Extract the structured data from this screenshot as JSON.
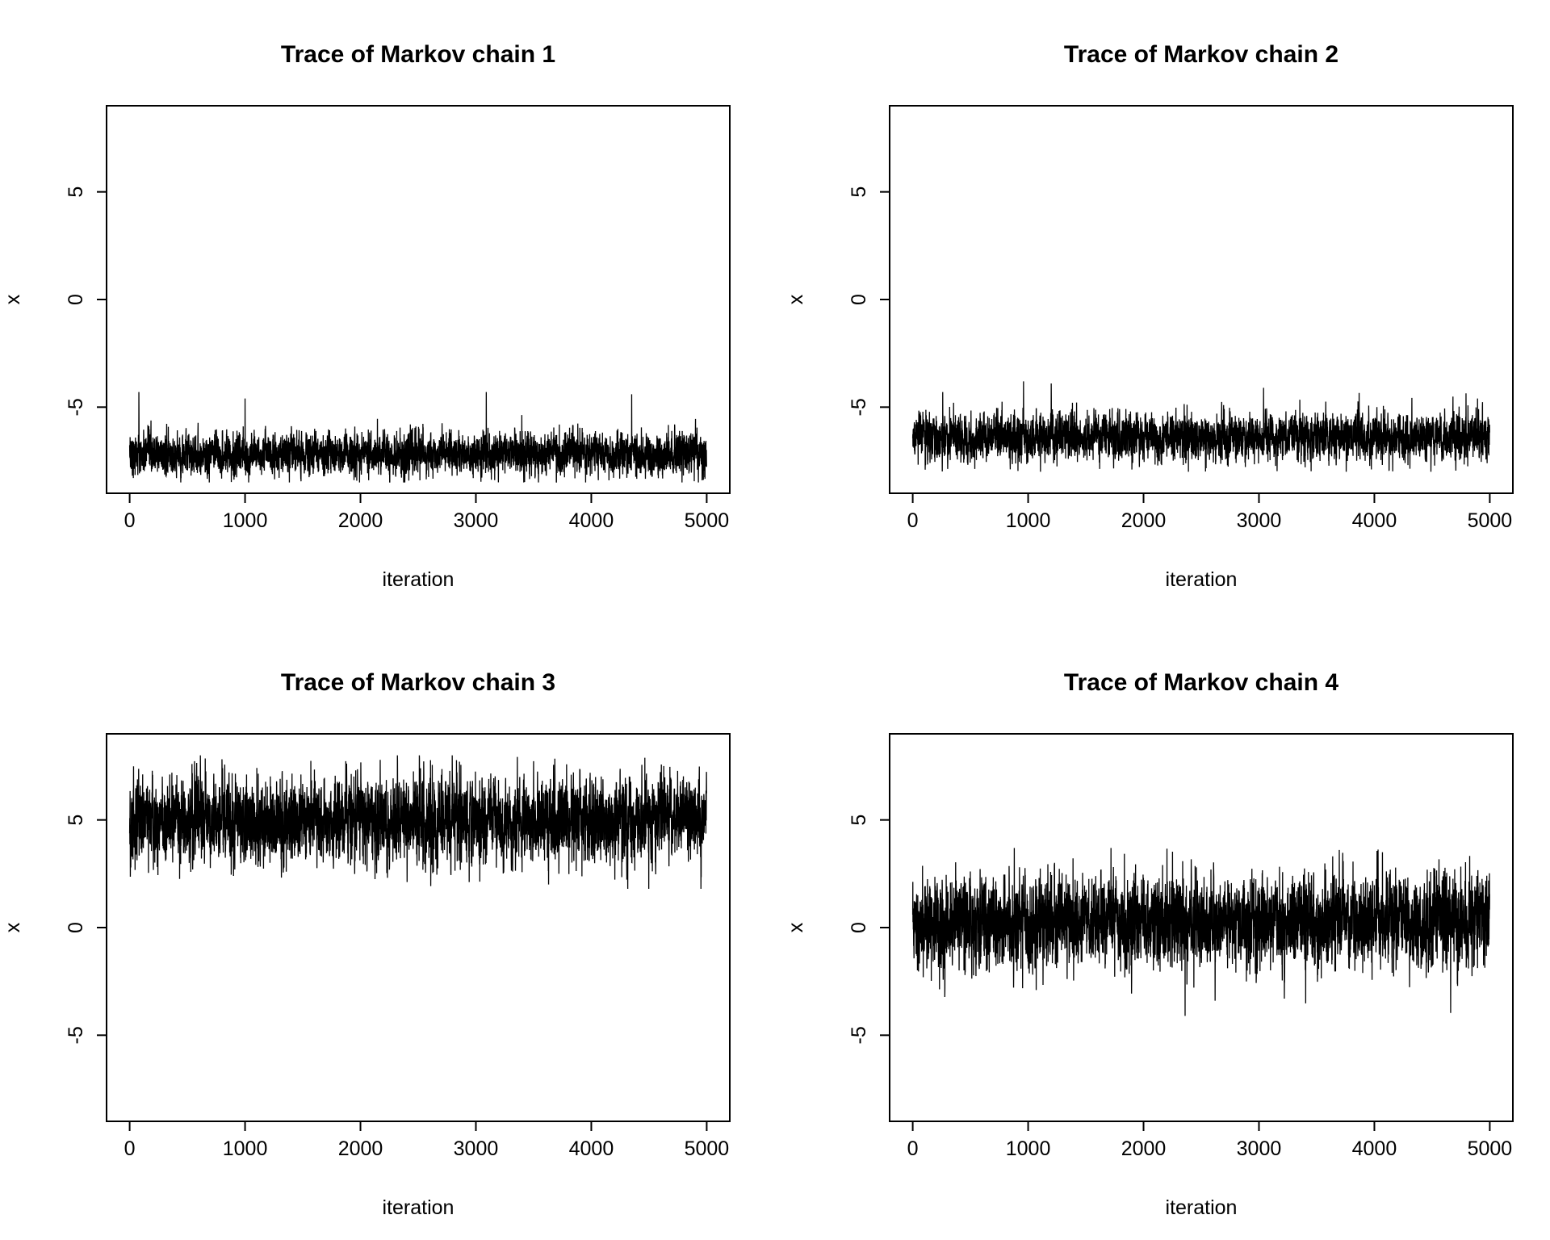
{
  "figure": {
    "description_colors": {
      "line": "#000000",
      "background": "#ffffff"
    }
  },
  "chart_data": [
    {
      "type": "line",
      "title": "Trace of Markov chain 1",
      "xlabel": "iteration",
      "ylabel": "x",
      "xlim": [
        -200,
        5200
      ],
      "ylim": [
        -9,
        9
      ],
      "xticks": [
        "0",
        "1000",
        "2000",
        "3000",
        "4000",
        "5000"
      ],
      "yticks": [
        "5",
        "0",
        "-5"
      ],
      "grid": false,
      "series": [
        {
          "n": 5000,
          "center": -7.2,
          "spread": 0.45,
          "min": -8.5,
          "max": -4.3
        }
      ],
      "spikes": [
        [
          80,
          -4.3
        ],
        [
          1000,
          -4.6
        ],
        [
          3090,
          -4.2
        ],
        [
          4350,
          -4.4
        ],
        [
          690,
          -8.5
        ],
        [
          4960,
          -8.4
        ]
      ]
    },
    {
      "type": "line",
      "title": "Trace of Markov chain 2",
      "xlabel": "iteration",
      "ylabel": "x",
      "xlim": [
        -200,
        5200
      ],
      "ylim": [
        -9,
        9
      ],
      "xticks": [
        "0",
        "1000",
        "2000",
        "3000",
        "4000",
        "5000"
      ],
      "yticks": [
        "5",
        "0",
        "-5"
      ],
      "grid": false,
      "series": [
        {
          "n": 5000,
          "center": -6.4,
          "spread": 0.5,
          "min": -8.0,
          "max": -3.8
        }
      ],
      "spikes": [
        [
          960,
          -3.8
        ],
        [
          1200,
          -3.9
        ],
        [
          3040,
          -4.1
        ],
        [
          4490,
          -8.0
        ],
        [
          260,
          -4.3
        ]
      ]
    },
    {
      "type": "line",
      "title": "Trace of Markov chain 3",
      "xlabel": "iteration",
      "ylabel": "x",
      "xlim": [
        -200,
        5200
      ],
      "ylim": [
        -9,
        9
      ],
      "xticks": [
        "0",
        "1000",
        "2000",
        "3000",
        "4000",
        "5000"
      ],
      "yticks": [
        "5",
        "0",
        "-5"
      ],
      "grid": false,
      "series": [
        {
          "n": 5000,
          "center": 5.0,
          "spread": 0.9,
          "min": 1.8,
          "max": 8.0
        }
      ],
      "spikes": [
        [
          2320,
          8.0
        ],
        [
          2520,
          7.4
        ],
        [
          3630,
          2.0
        ],
        [
          4950,
          1.8
        ],
        [
          900,
          2.4
        ],
        [
          540,
          7.6
        ]
      ]
    },
    {
      "type": "line",
      "title": "Trace of Markov chain 4",
      "xlabel": "iteration",
      "ylabel": "x",
      "xlim": [
        -200,
        5200
      ],
      "ylim": [
        -9,
        9
      ],
      "xticks": [
        "0",
        "1000",
        "2000",
        "3000",
        "4000",
        "5000"
      ],
      "yticks": [
        "5",
        "0",
        "-5"
      ],
      "grid": false,
      "series": [
        {
          "n": 5000,
          "center": 0.3,
          "spread": 1.0,
          "min": -4.1,
          "max": 3.7
        }
      ],
      "spikes": [
        [
          2360,
          -4.1
        ],
        [
          2620,
          -3.4
        ],
        [
          3220,
          -3.3
        ],
        [
          880,
          3.7
        ],
        [
          4070,
          3.5
        ],
        [
          1070,
          -2.9
        ]
      ]
    }
  ]
}
